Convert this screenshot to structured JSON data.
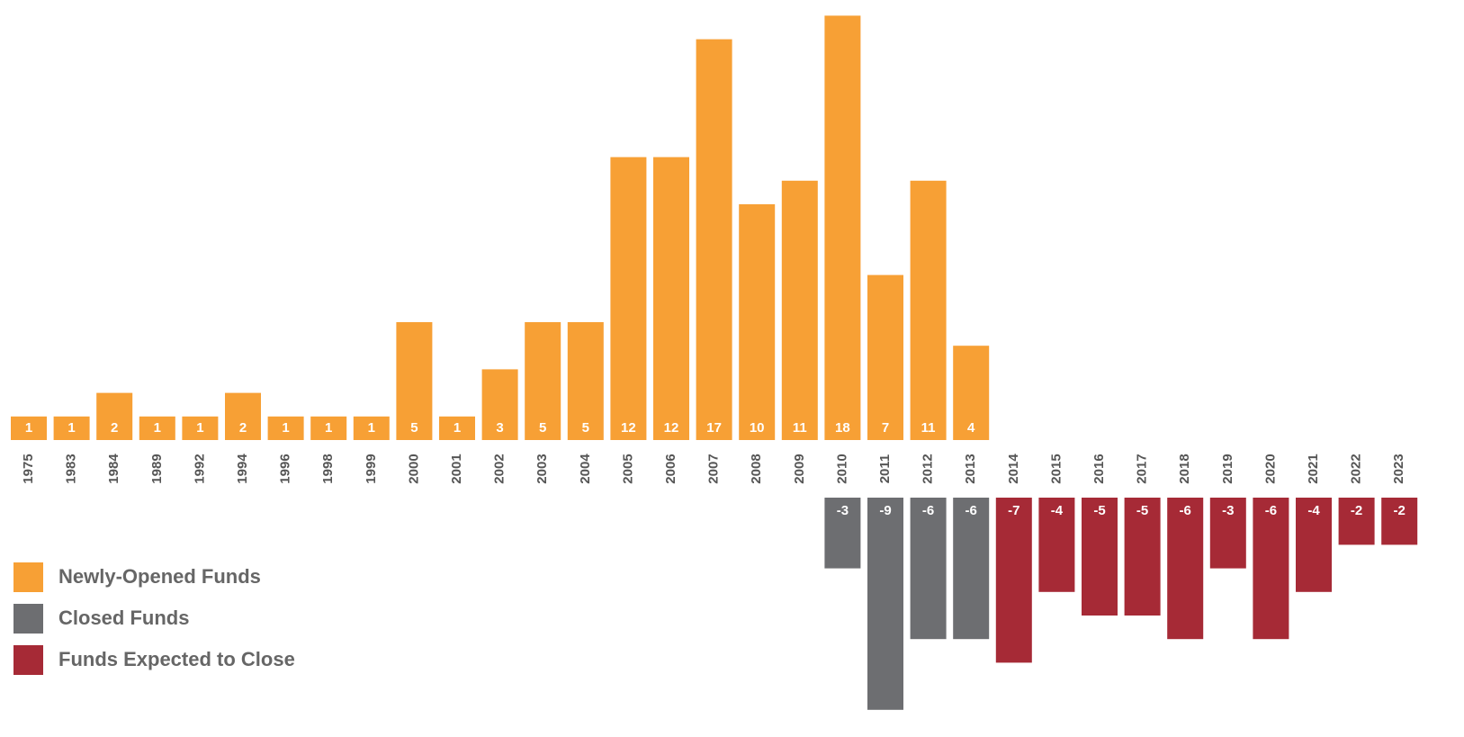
{
  "chart_data": {
    "type": "bar",
    "categories": [
      "1975",
      "1983",
      "1984",
      "1989",
      "1992",
      "1994",
      "1996",
      "1998",
      "1999",
      "2000",
      "2001",
      "2002",
      "2003",
      "2004",
      "2005",
      "2006",
      "2007",
      "2008",
      "2009",
      "2010",
      "2011",
      "2012",
      "2013",
      "2014",
      "2015",
      "2016",
      "2017",
      "2018",
      "2019",
      "2020",
      "2021",
      "2022",
      "2023"
    ],
    "series": [
      {
        "name": "Newly-Opened Funds",
        "color": "#f7a035",
        "values": [
          1,
          1,
          2,
          1,
          1,
          2,
          1,
          1,
          1,
          5,
          1,
          3,
          5,
          5,
          12,
          12,
          17,
          10,
          11,
          18,
          7,
          11,
          4,
          null,
          null,
          null,
          null,
          null,
          null,
          null,
          null,
          null,
          null
        ]
      },
      {
        "name": "Closed Funds",
        "color": "#6d6e71",
        "values": [
          null,
          null,
          null,
          null,
          null,
          null,
          null,
          null,
          null,
          null,
          null,
          null,
          null,
          null,
          null,
          null,
          null,
          null,
          null,
          -3,
          -9,
          -6,
          -6,
          null,
          null,
          null,
          null,
          null,
          null,
          null,
          null,
          null,
          null
        ]
      },
      {
        "name": "Funds Expected to Close",
        "color": "#a62a36",
        "values": [
          null,
          null,
          null,
          null,
          null,
          null,
          null,
          null,
          null,
          null,
          null,
          null,
          null,
          null,
          null,
          null,
          null,
          null,
          null,
          null,
          null,
          null,
          null,
          -7,
          -4,
          -5,
          -5,
          -6,
          -3,
          -6,
          -4,
          -2,
          -2
        ]
      }
    ]
  }
}
